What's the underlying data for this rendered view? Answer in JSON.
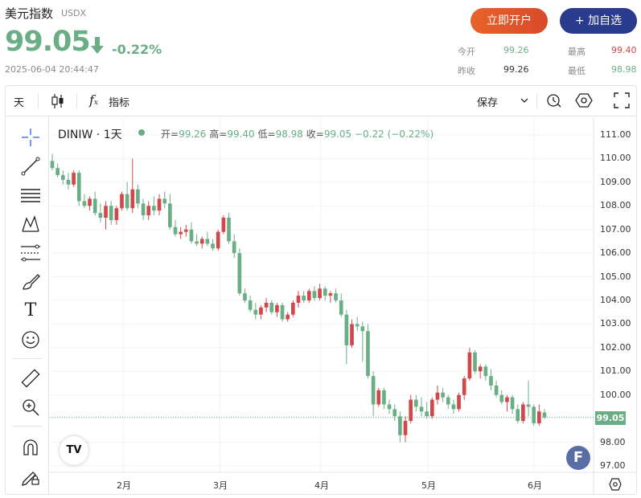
{
  "header": {
    "title": "美元指数",
    "code": "USDX",
    "price": "99.05",
    "change_pct": "-0.22%",
    "timestamp": "2025-06-04 20:44:47",
    "open_account_label": "立即开户",
    "add_watchlist_label": "+ 加自选"
  },
  "stats": {
    "open_label": "今开",
    "open": "99.26",
    "high_label": "最高",
    "high": "99.40",
    "prev_close_label": "昨收",
    "prev_close": "99.26",
    "low_label": "最低",
    "low": "98.98"
  },
  "toolbar": {
    "interval": "天",
    "indicators_label": "指标",
    "save_label": "保存"
  },
  "legend": {
    "symbol": "DINIW · 1天",
    "open_label": "开=",
    "open": "99.26",
    "high_label": "高=",
    "high": "99.40",
    "low_label": "低=",
    "low": "98.98",
    "close_label": "收=",
    "close": "99.05",
    "change": "−0.22 (−0.22%)"
  },
  "current_price_tag": "99.05",
  "colors": {
    "up": "#d0484a",
    "down": "#6aae86",
    "accent": "#2a3a8c",
    "brand_orange": "#e8632a"
  },
  "chart_data": {
    "type": "candlestick",
    "ylim": [
      96.75,
      111.5
    ],
    "y_ticks": [
      "111.00",
      "110.00",
      "109.00",
      "108.00",
      "107.00",
      "106.00",
      "105.00",
      "104.00",
      "103.00",
      "102.00",
      "101.00",
      "100.00",
      "99.00",
      "98.00",
      "97.00"
    ],
    "x_ticks": [
      "2月",
      "3月",
      "4月",
      "5月",
      "6月"
    ],
    "candles": [
      [
        109.9,
        110.2,
        109.5,
        109.6
      ],
      [
        109.6,
        109.8,
        109.2,
        109.3
      ],
      [
        109.3,
        109.5,
        108.9,
        109.1
      ],
      [
        109.1,
        109.4,
        108.7,
        108.9
      ],
      [
        108.9,
        109.5,
        108.8,
        109.4
      ],
      [
        109.4,
        109.5,
        108.0,
        108.2
      ],
      [
        108.2,
        108.5,
        107.9,
        108.0
      ],
      [
        108.0,
        108.4,
        107.8,
        108.3
      ],
      [
        108.3,
        108.6,
        107.6,
        107.7
      ],
      [
        107.7,
        108.1,
        107.3,
        107.5
      ],
      [
        107.5,
        108.2,
        107.0,
        108.0
      ],
      [
        108.0,
        108.2,
        107.2,
        107.4
      ],
      [
        107.4,
        108.0,
        107.2,
        107.9
      ],
      [
        107.9,
        108.6,
        107.8,
        108.5
      ],
      [
        108.5,
        109.0,
        107.8,
        107.9
      ],
      [
        107.9,
        110.0,
        107.7,
        108.7
      ],
      [
        108.7,
        108.9,
        107.9,
        108.1
      ],
      [
        108.1,
        108.3,
        107.4,
        107.6
      ],
      [
        107.6,
        108.2,
        107.4,
        108.0
      ],
      [
        108.0,
        108.4,
        107.6,
        107.8
      ],
      [
        107.8,
        108.5,
        107.6,
        108.3
      ],
      [
        108.3,
        108.6,
        107.9,
        108.1
      ],
      [
        108.1,
        108.5,
        107.0,
        107.1
      ],
      [
        107.1,
        107.4,
        106.7,
        106.8
      ],
      [
        106.8,
        107.1,
        106.6,
        106.9
      ],
      [
        106.9,
        107.2,
        106.7,
        107.0
      ],
      [
        107.0,
        107.3,
        106.4,
        106.5
      ],
      [
        106.5,
        106.8,
        106.3,
        106.4
      ],
      [
        106.4,
        106.7,
        106.2,
        106.6
      ],
      [
        106.6,
        106.9,
        106.3,
        106.4
      ],
      [
        106.4,
        106.6,
        106.1,
        106.2
      ],
      [
        106.2,
        107.0,
        106.1,
        106.9
      ],
      [
        106.9,
        107.6,
        106.8,
        107.5
      ],
      [
        107.5,
        107.7,
        106.4,
        106.5
      ],
      [
        106.5,
        106.8,
        105.8,
        106.0
      ],
      [
        106.0,
        106.2,
        104.2,
        104.3
      ],
      [
        104.3,
        104.5,
        103.9,
        104.0
      ],
      [
        104.0,
        104.2,
        103.5,
        103.6
      ],
      [
        103.6,
        103.9,
        103.2,
        103.4
      ],
      [
        103.4,
        103.8,
        103.2,
        103.7
      ],
      [
        103.7,
        104.1,
        103.5,
        103.9
      ],
      [
        103.9,
        104.0,
        103.4,
        103.5
      ],
      [
        103.5,
        103.9,
        103.3,
        103.8
      ],
      [
        103.8,
        103.9,
        103.1,
        103.2
      ],
      [
        103.2,
        103.5,
        103.1,
        103.4
      ],
      [
        103.4,
        104.0,
        103.3,
        103.9
      ],
      [
        103.9,
        104.4,
        103.7,
        104.2
      ],
      [
        104.2,
        104.4,
        103.9,
        104.0
      ],
      [
        104.0,
        104.5,
        103.9,
        104.4
      ],
      [
        104.4,
        104.6,
        104.0,
        104.1
      ],
      [
        104.1,
        104.7,
        104.0,
        104.5
      ],
      [
        104.5,
        104.6,
        104.0,
        104.2
      ],
      [
        104.2,
        104.4,
        103.9,
        104.3
      ],
      [
        104.3,
        104.5,
        103.9,
        104.0
      ],
      [
        104.0,
        104.3,
        103.3,
        103.4
      ],
      [
        103.4,
        103.6,
        101.3,
        102.1
      ],
      [
        102.1,
        103.2,
        102.0,
        103.0
      ],
      [
        103.0,
        103.3,
        102.7,
        102.9
      ],
      [
        102.9,
        103.1,
        101.4,
        102.7
      ],
      [
        102.7,
        103.0,
        100.7,
        100.8
      ],
      [
        100.8,
        101.0,
        99.1,
        99.6
      ],
      [
        99.6,
        100.3,
        99.5,
        100.2
      ],
      [
        100.2,
        100.3,
        99.4,
        99.6
      ],
      [
        99.6,
        99.8,
        99.2,
        99.4
      ],
      [
        99.4,
        99.6,
        98.9,
        99.1
      ],
      [
        99.1,
        99.3,
        98.0,
        98.3
      ],
      [
        98.3,
        99.1,
        98.0,
        98.9
      ],
      [
        98.9,
        100.0,
        98.8,
        99.8
      ],
      [
        99.8,
        100.0,
        99.3,
        99.5
      ],
      [
        99.5,
        99.9,
        99.1,
        99.3
      ],
      [
        99.3,
        99.7,
        99.0,
        99.1
      ],
      [
        99.1,
        99.9,
        99.0,
        99.8
      ],
      [
        99.8,
        100.4,
        99.6,
        100.1
      ],
      [
        100.1,
        100.3,
        99.7,
        99.9
      ],
      [
        99.9,
        100.0,
        99.4,
        99.6
      ],
      [
        99.6,
        99.8,
        99.2,
        99.4
      ],
      [
        99.4,
        100.1,
        99.3,
        100.0
      ],
      [
        100.0,
        100.8,
        99.8,
        100.7
      ],
      [
        100.7,
        102.0,
        100.6,
        101.8
      ],
      [
        101.8,
        101.9,
        100.9,
        101.0
      ],
      [
        101.0,
        101.3,
        100.7,
        101.2
      ],
      [
        101.2,
        101.3,
        100.6,
        100.8
      ],
      [
        100.8,
        101.1,
        100.2,
        100.4
      ],
      [
        100.4,
        100.6,
        99.9,
        100.0
      ],
      [
        100.0,
        100.2,
        99.6,
        99.7
      ],
      [
        99.7,
        100.0,
        99.3,
        99.9
      ],
      [
        99.9,
        100.0,
        99.2,
        99.4
      ],
      [
        99.4,
        99.6,
        98.8,
        98.9
      ],
      [
        98.9,
        99.7,
        98.8,
        99.6
      ],
      [
        99.6,
        100.6,
        99.1,
        99.5
      ],
      [
        99.5,
        99.6,
        98.7,
        98.8
      ],
      [
        98.8,
        99.6,
        98.7,
        99.3
      ],
      [
        99.26,
        99.4,
        98.98,
        99.05
      ]
    ]
  }
}
